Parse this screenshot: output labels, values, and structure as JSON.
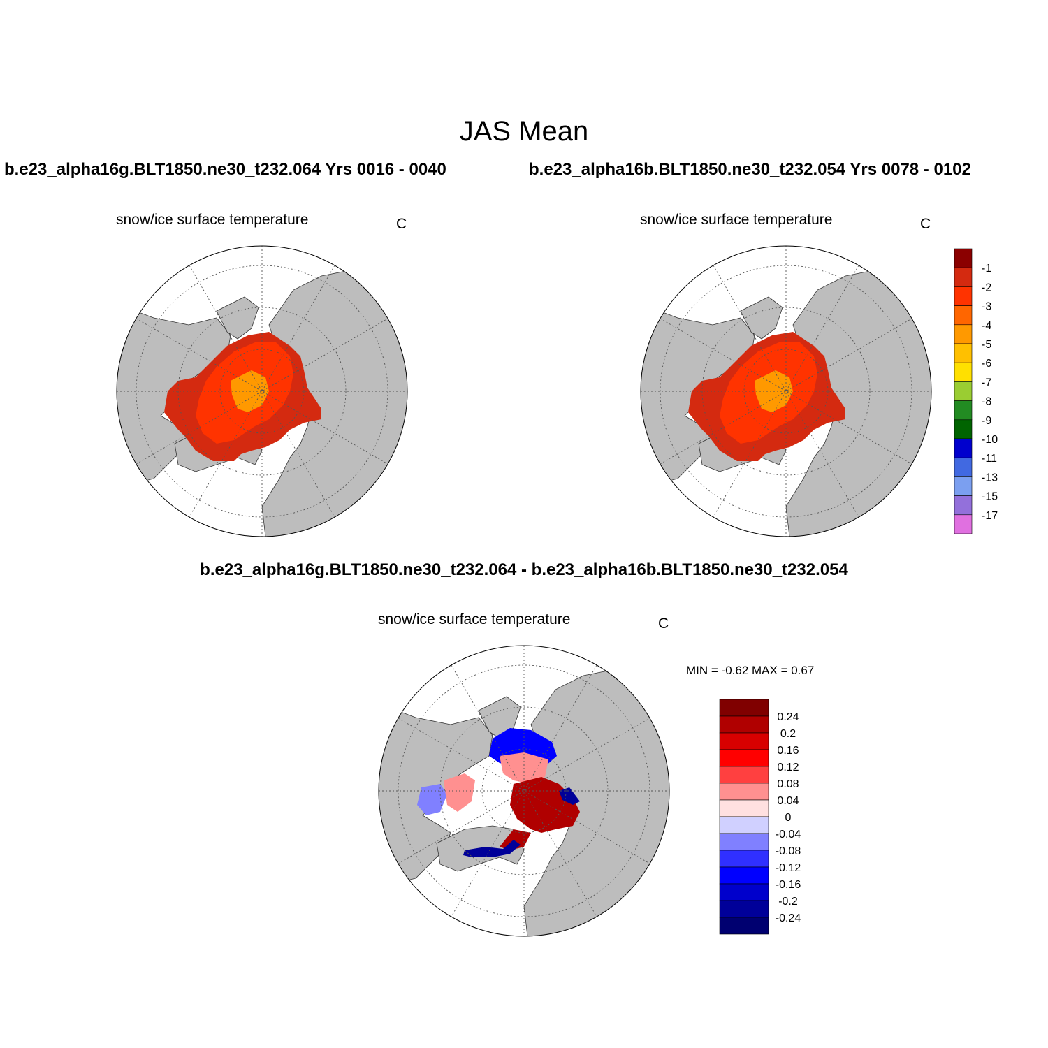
{
  "main_title": "JAS Mean",
  "case1_title": "b.e23_alpha16g.BLT1850.ne30_t232.064  Yrs 0016 - 0040",
  "case2_title": "b.e23_alpha16b.BLT1850.ne30_t232.054  Yrs 0078 - 0102",
  "diff_title": "b.e23_alpha16g.BLT1850.ne30_t232.064 - b.e23_alpha16b.BLT1850.ne30_t232.054",
  "panels": [
    {
      "title": "snow/ice surface temperature",
      "units": "C"
    },
    {
      "title": "snow/ice surface temperature",
      "units": "C"
    },
    {
      "title": "snow/ice surface temperature",
      "units": "C"
    }
  ],
  "minmax_text": "MIN =  -0.62 MAX =   0.67",
  "colorbar_main": {
    "labels": [
      "-1",
      "-2",
      "-3",
      "-4",
      "-5",
      "-6",
      "-7",
      "-8",
      "-9",
      "-10",
      "-11",
      "-13",
      "-15",
      "-17"
    ],
    "colors": [
      "#8b0000",
      "#d42a10",
      "#ff3300",
      "#ff6600",
      "#ff9900",
      "#ffc000",
      "#ffe000",
      "#9acd32",
      "#228b22",
      "#006400",
      "#0000cd",
      "#4169e1",
      "#7b9ff0",
      "#9370db",
      "#e070e0"
    ]
  },
  "colorbar_diff": {
    "labels": [
      "0.24",
      "0.2",
      "0.16",
      "0.12",
      "0.08",
      "0.04",
      "0",
      "-0.04",
      "-0.08",
      "-0.12",
      "-0.16",
      "-0.2",
      "-0.24"
    ],
    "colors": [
      "#800000",
      "#b00000",
      "#d80000",
      "#ff0000",
      "#ff4040",
      "#ff9090",
      "#ffe0e0",
      "#d0d0ff",
      "#8080ff",
      "#3030ff",
      "#0000ff",
      "#0000cc",
      "#000099",
      "#000070"
    ]
  },
  "colors": {
    "land": "#bdbdbd",
    "ocean": "#ffffff",
    "gridline": "#555555"
  }
}
